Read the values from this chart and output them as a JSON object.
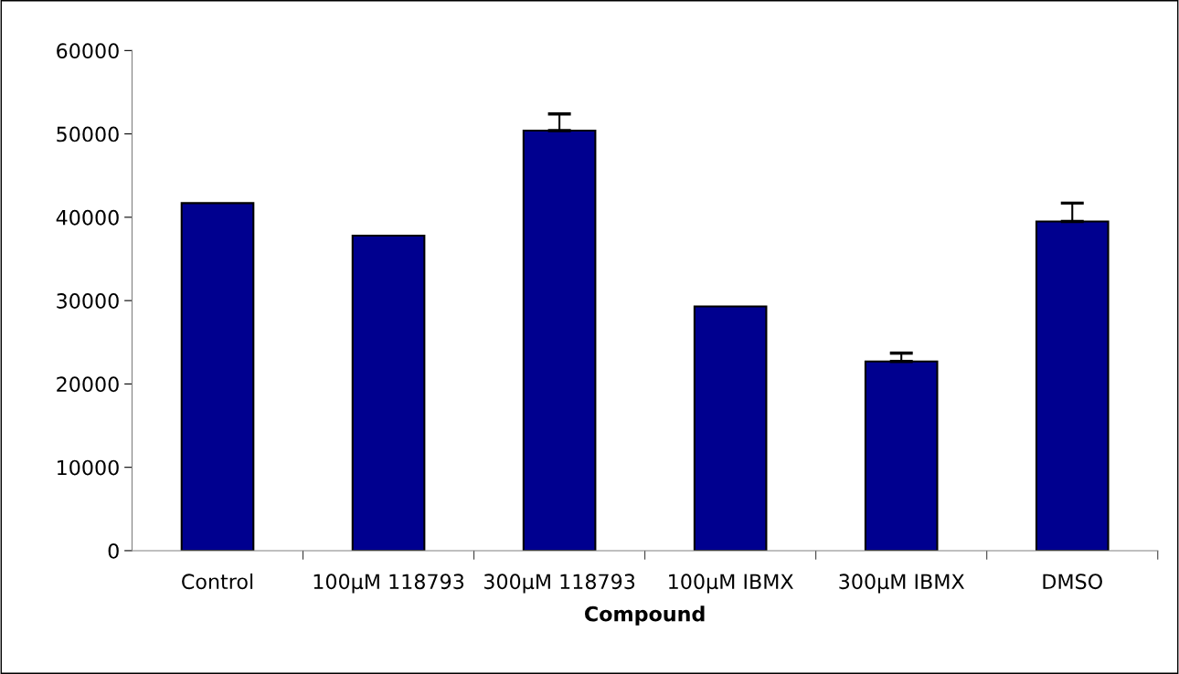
{
  "chart_data": {
    "type": "bar",
    "xlabel": "Compound",
    "categories": [
      "Control",
      "100µM 118793",
      "300µM 118793",
      "100µM IBMX",
      "300µM IBMX",
      "DMSO"
    ],
    "values": [
      41700,
      37800,
      50400,
      29300,
      22700,
      39500
    ],
    "errors": [
      null,
      null,
      [
        50400,
        52400
      ],
      null,
      [
        22700,
        23700
      ],
      [
        39500,
        41700
      ]
    ],
    "color": "#00008f",
    "ylim": [
      0,
      60000
    ],
    "yticks": [
      0,
      10000,
      20000,
      30000,
      40000,
      50000,
      60000
    ],
    "grid": false
  }
}
